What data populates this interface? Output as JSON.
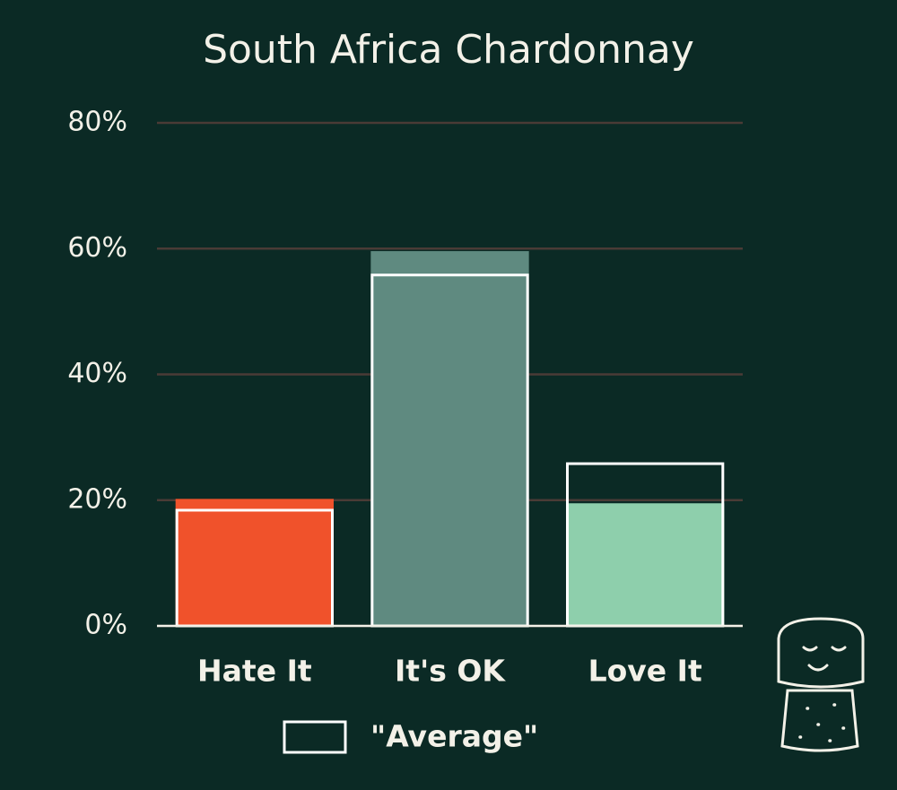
{
  "chart_data": {
    "type": "bar",
    "title": "South Africa Chardonnay",
    "categories": [
      "Hate It",
      "It's OK",
      "Love It"
    ],
    "values": [
      20.2,
      59.6,
      19.5
    ],
    "colors": [
      "#f0522b",
      "#5f8a80",
      "#8ecfac"
    ],
    "average": {
      "name": "\"Average\"",
      "color": "#ffffff",
      "values": [
        18.4,
        55.8,
        25.8
      ]
    },
    "ylim": [
      0,
      80
    ],
    "yticks": [
      {
        "value": 0,
        "label": "0%"
      },
      {
        "value": 20,
        "label": "20%"
      },
      {
        "value": 40,
        "label": "40%"
      },
      {
        "value": 60,
        "label": "60%"
      },
      {
        "value": 80,
        "label": "80%"
      }
    ],
    "grid": true
  }
}
